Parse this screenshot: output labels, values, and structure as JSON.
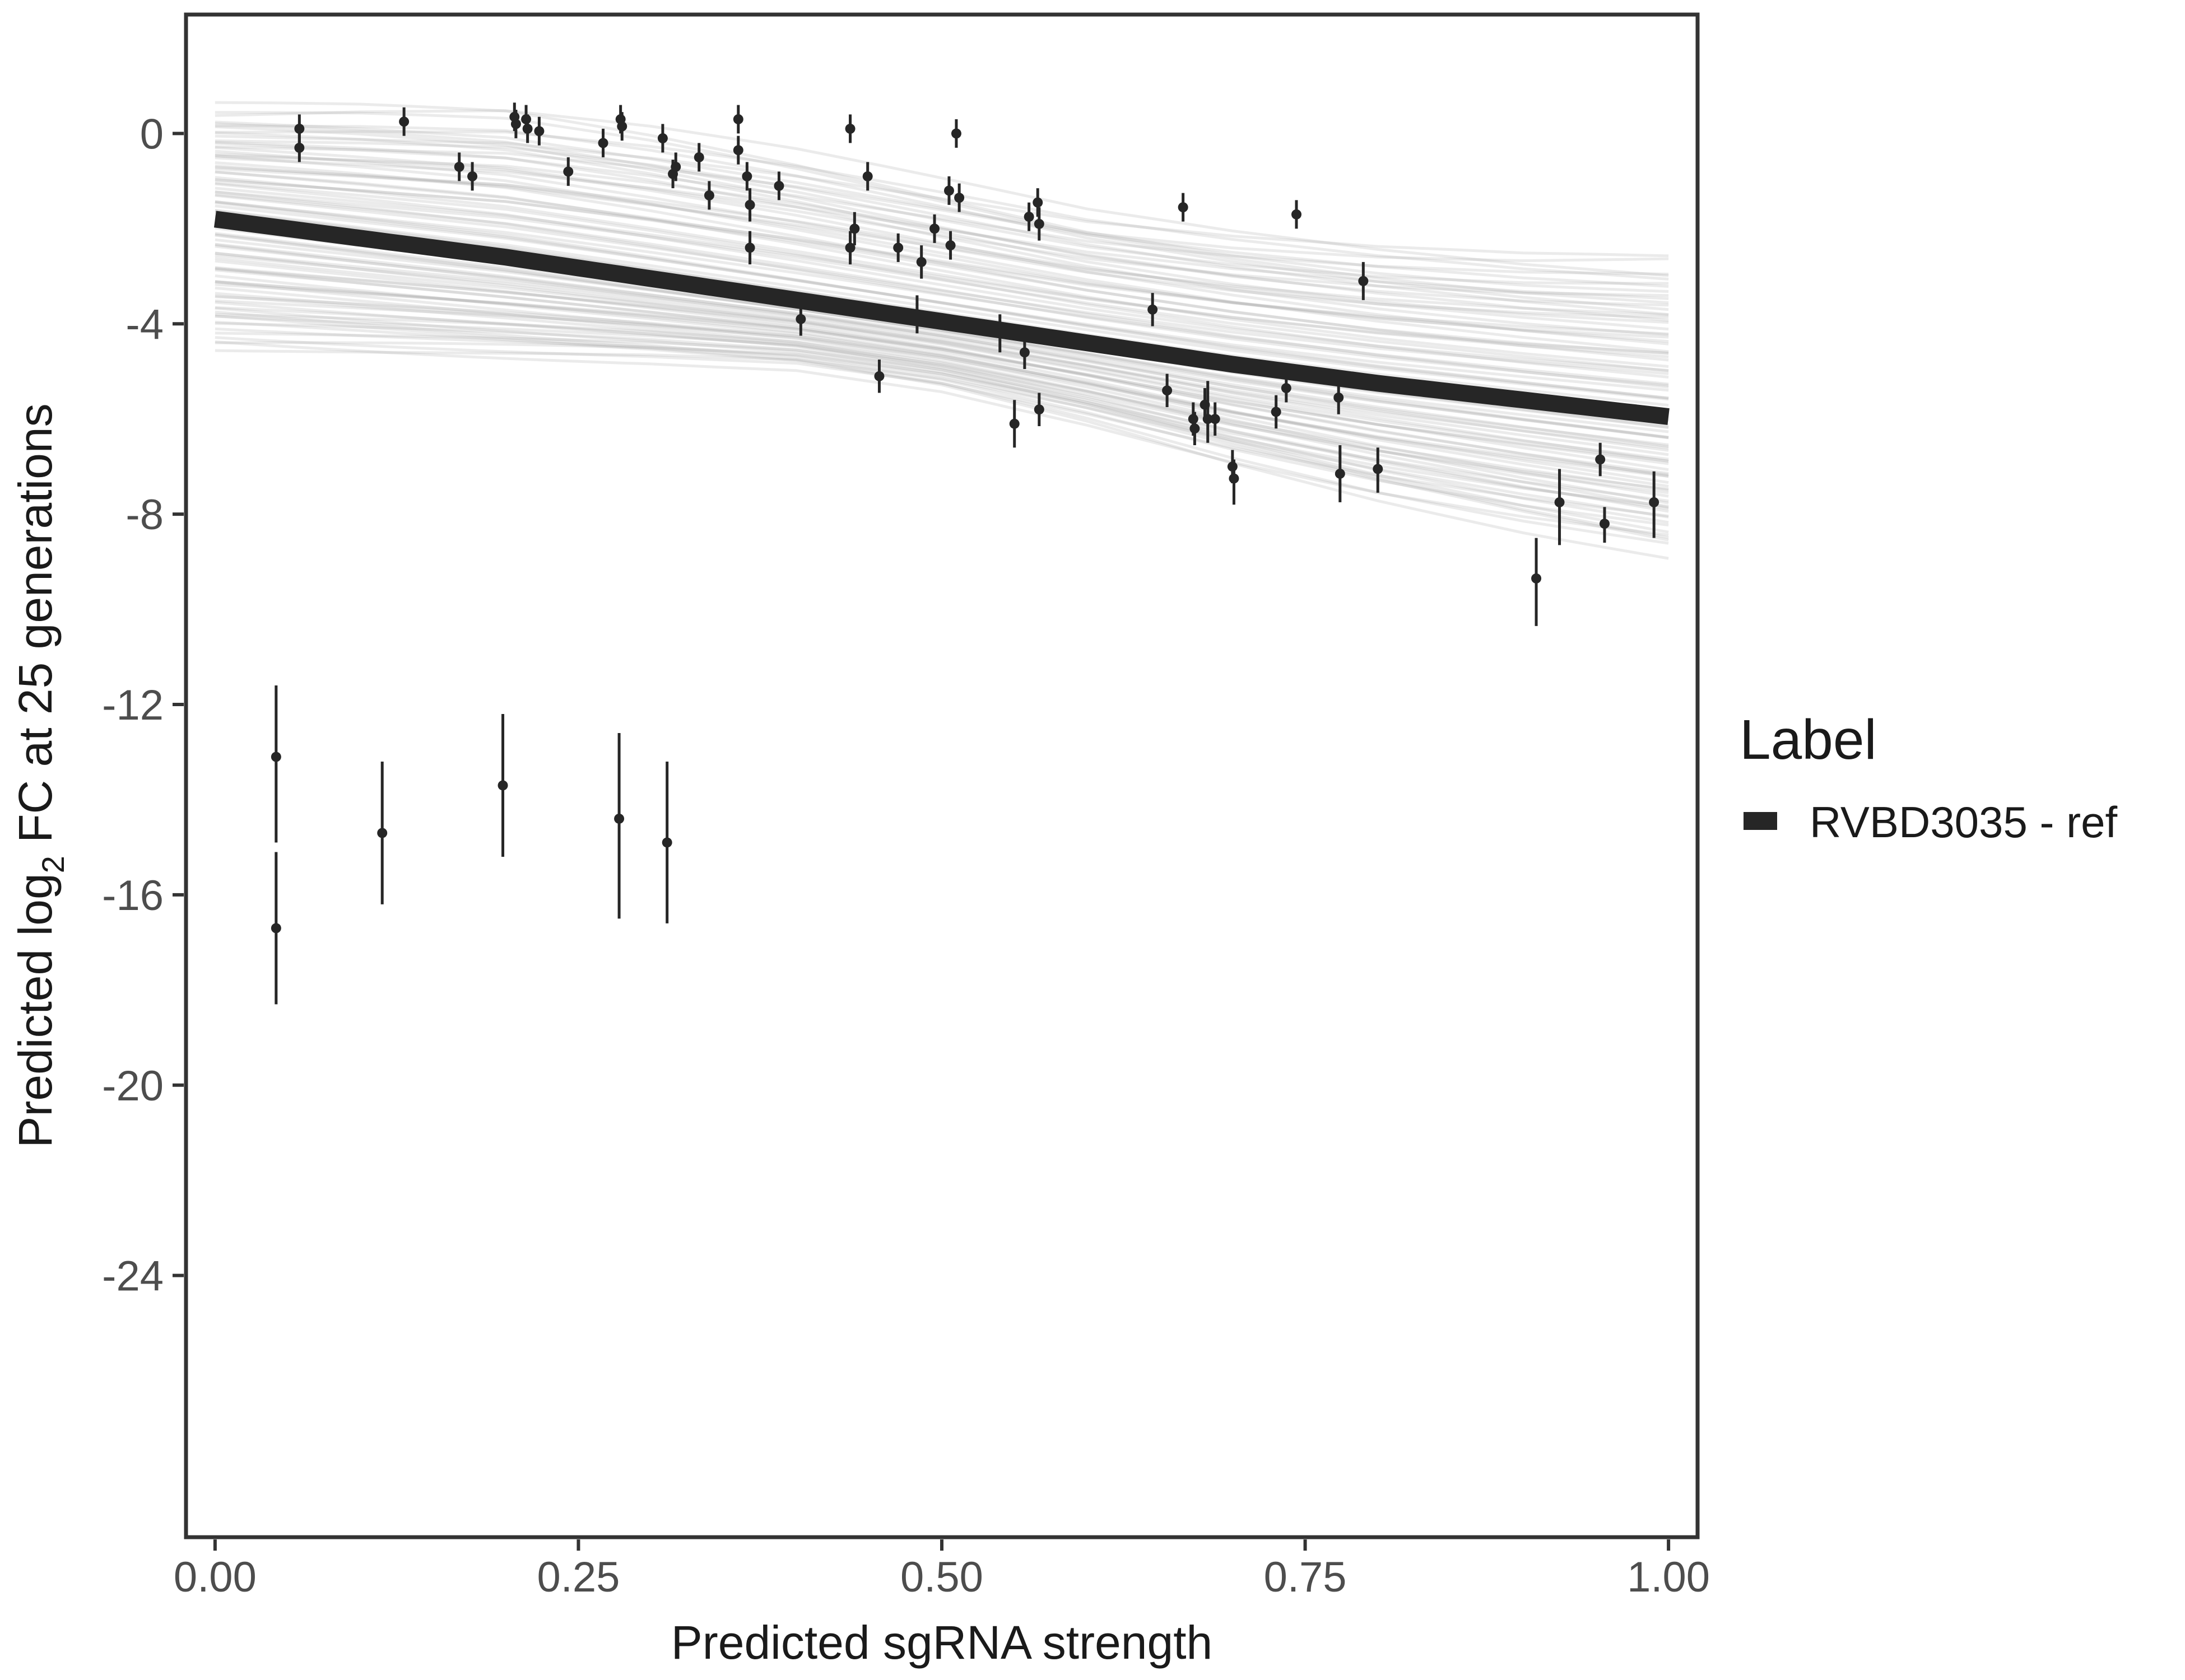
{
  "chart_data": {
    "type": "scatter",
    "title": "",
    "xlabel": "Predicted sgRNA strength",
    "ylabel_prefix": "Predicted  log",
    "ylabel_sub": "2",
    "ylabel_suffix": " FC at 25 generations",
    "xlim": [
      -0.02,
      1.02
    ],
    "ylim": [
      -29.5,
      2.5
    ],
    "x_ticks": [
      0,
      0.25,
      0.5,
      0.75,
      1
    ],
    "x_tick_labels": [
      "0.00",
      "0.25",
      "0.50",
      "0.75",
      "1.00"
    ],
    "y_ticks": [
      0,
      -4,
      -8,
      -12,
      -16,
      -20,
      -24
    ],
    "y_tick_labels": [
      "0",
      "-4",
      "-8",
      "-12",
      "-16",
      "-20",
      "-24"
    ],
    "legend": {
      "title": "Label",
      "entries": [
        {
          "label": "RVBD3035 - ref",
          "color": "#262626"
        }
      ]
    },
    "fit_line": {
      "name": "RVBD3035 - ref",
      "color": "#262626",
      "x": [
        0,
        0.1,
        0.2,
        0.3,
        0.4,
        0.5,
        0.6,
        0.7,
        0.8,
        0.9,
        1.0
      ],
      "y": [
        -1.8,
        -2.2,
        -2.6,
        -3.05,
        -3.5,
        -3.95,
        -4.4,
        -4.85,
        -5.25,
        -5.6,
        -5.95
      ]
    },
    "posterior_band": {
      "color": "#a6a6a6",
      "upper": [
        0.4,
        0.38,
        0.3,
        -0.1,
        -0.6,
        -1.2,
        -1.8,
        -2.2,
        -2.5,
        -2.7,
        -2.8
      ],
      "lower": [
        -4.4,
        -4.5,
        -4.6,
        -4.7,
        -4.85,
        -5.3,
        -6.0,
        -6.8,
        -7.5,
        -8.1,
        -8.6
      ]
    },
    "points": [
      {
        "x": 0.042,
        "y": -13.1,
        "lo": -14.9,
        "hi": -11.6
      },
      {
        "x": 0.042,
        "y": -16.7,
        "lo": -18.3,
        "hi": -15.1
      },
      {
        "x": 0.058,
        "y": 0.1,
        "lo": -0.2,
        "hi": 0.4
      },
      {
        "x": 0.058,
        "y": -0.3,
        "lo": -0.6,
        "hi": 0.0
      },
      {
        "x": 0.115,
        "y": -14.7,
        "lo": -16.2,
        "hi": -13.2
      },
      {
        "x": 0.13,
        "y": 0.25,
        "lo": -0.05,
        "hi": 0.55
      },
      {
        "x": 0.168,
        "y": -0.7,
        "lo": -1.0,
        "hi": -0.4
      },
      {
        "x": 0.177,
        "y": -0.9,
        "lo": -1.2,
        "hi": -0.6
      },
      {
        "x": 0.198,
        "y": -13.7,
        "lo": -15.2,
        "hi": -12.2
      },
      {
        "x": 0.206,
        "y": 0.35,
        "lo": 0.05,
        "hi": 0.65
      },
      {
        "x": 0.207,
        "y": 0.2,
        "lo": -0.1,
        "hi": 0.5
      },
      {
        "x": 0.214,
        "y": 0.3,
        "lo": 0.0,
        "hi": 0.6
      },
      {
        "x": 0.215,
        "y": 0.1,
        "lo": -0.2,
        "hi": 0.4
      },
      {
        "x": 0.223,
        "y": 0.05,
        "lo": -0.25,
        "hi": 0.35
      },
      {
        "x": 0.243,
        "y": -0.8,
        "lo": -1.1,
        "hi": -0.5
      },
      {
        "x": 0.267,
        "y": -0.2,
        "lo": -0.5,
        "hi": 0.1
      },
      {
        "x": 0.279,
        "y": 0.3,
        "lo": 0.0,
        "hi": 0.6
      },
      {
        "x": 0.28,
        "y": 0.15,
        "lo": -0.15,
        "hi": 0.45
      },
      {
        "x": 0.278,
        "y": -14.4,
        "lo": -16.5,
        "hi": -12.6
      },
      {
        "x": 0.308,
        "y": -0.1,
        "lo": -0.4,
        "hi": 0.2
      },
      {
        "x": 0.311,
        "y": -14.9,
        "lo": -16.6,
        "hi": -13.2
      },
      {
        "x": 0.315,
        "y": -0.85,
        "lo": -1.15,
        "hi": -0.55
      },
      {
        "x": 0.317,
        "y": -0.7,
        "lo": -1.0,
        "hi": -0.4
      },
      {
        "x": 0.333,
        "y": -0.5,
        "lo": -0.8,
        "hi": -0.2
      },
      {
        "x": 0.34,
        "y": -1.3,
        "lo": -1.6,
        "hi": -1.0
      },
      {
        "x": 0.36,
        "y": 0.3,
        "lo": 0.0,
        "hi": 0.6
      },
      {
        "x": 0.36,
        "y": -0.35,
        "lo": -0.65,
        "hi": -0.05
      },
      {
        "x": 0.366,
        "y": -0.9,
        "lo": -1.2,
        "hi": -0.6
      },
      {
        "x": 0.368,
        "y": -1.5,
        "lo": -1.85,
        "hi": -1.15
      },
      {
        "x": 0.368,
        "y": -2.4,
        "lo": -2.75,
        "hi": -2.05
      },
      {
        "x": 0.388,
        "y": -1.1,
        "lo": -1.4,
        "hi": -0.8
      },
      {
        "x": 0.403,
        "y": -3.9,
        "lo": -4.25,
        "hi": -3.55
      },
      {
        "x": 0.437,
        "y": 0.1,
        "lo": -0.2,
        "hi": 0.4
      },
      {
        "x": 0.437,
        "y": -2.4,
        "lo": -2.75,
        "hi": -2.05
      },
      {
        "x": 0.44,
        "y": -2.0,
        "lo": -2.35,
        "hi": -1.65
      },
      {
        "x": 0.449,
        "y": -0.9,
        "lo": -1.2,
        "hi": -0.6
      },
      {
        "x": 0.457,
        "y": -5.1,
        "lo": -5.45,
        "hi": -4.75
      },
      {
        "x": 0.47,
        "y": -2.4,
        "lo": -2.7,
        "hi": -2.1
      },
      {
        "x": 0.483,
        "y": -3.8,
        "lo": -4.2,
        "hi": -3.4
      },
      {
        "x": 0.486,
        "y": -2.7,
        "lo": -3.05,
        "hi": -2.35
      },
      {
        "x": 0.495,
        "y": -2.0,
        "lo": -2.3,
        "hi": -1.7
      },
      {
        "x": 0.505,
        "y": -1.2,
        "lo": -1.5,
        "hi": -0.9
      },
      {
        "x": 0.506,
        "y": -2.35,
        "lo": -2.65,
        "hi": -2.05
      },
      {
        "x": 0.51,
        "y": 0.0,
        "lo": -0.3,
        "hi": 0.3
      },
      {
        "x": 0.512,
        "y": -1.35,
        "lo": -1.65,
        "hi": -1.05
      },
      {
        "x": 0.54,
        "y": -4.2,
        "lo": -4.6,
        "hi": -3.8
      },
      {
        "x": 0.55,
        "y": -6.1,
        "lo": -6.6,
        "hi": -5.6
      },
      {
        "x": 0.557,
        "y": -4.6,
        "lo": -4.95,
        "hi": -4.25
      },
      {
        "x": 0.56,
        "y": -1.75,
        "lo": -2.05,
        "hi": -1.45
      },
      {
        "x": 0.566,
        "y": -1.45,
        "lo": -1.75,
        "hi": -1.15
      },
      {
        "x": 0.567,
        "y": -1.9,
        "lo": -2.25,
        "hi": -1.55
      },
      {
        "x": 0.567,
        "y": -5.8,
        "lo": -6.15,
        "hi": -5.45
      },
      {
        "x": 0.645,
        "y": -3.7,
        "lo": -4.05,
        "hi": -3.35
      },
      {
        "x": 0.655,
        "y": -5.4,
        "lo": -5.75,
        "hi": -5.05
      },
      {
        "x": 0.666,
        "y": -1.55,
        "lo": -1.85,
        "hi": -1.25
      },
      {
        "x": 0.673,
        "y": -6.0,
        "lo": -6.35,
        "hi": -5.65
      },
      {
        "x": 0.674,
        "y": -6.2,
        "lo": -6.55,
        "hi": -5.85
      },
      {
        "x": 0.681,
        "y": -5.7,
        "lo": -6.05,
        "hi": -5.35
      },
      {
        "x": 0.683,
        "y": -6.0,
        "lo": -6.5,
        "hi": -5.2
      },
      {
        "x": 0.688,
        "y": -6.0,
        "lo": -6.35,
        "hi": -5.65
      },
      {
        "x": 0.7,
        "y": -7.0,
        "lo": -7.35,
        "hi": -6.65
      },
      {
        "x": 0.701,
        "y": -7.25,
        "lo": -7.8,
        "hi": -6.85
      },
      {
        "x": 0.73,
        "y": -5.85,
        "lo": -6.2,
        "hi": -5.5
      },
      {
        "x": 0.737,
        "y": -5.35,
        "lo": -5.65,
        "hi": -5.05
      },
      {
        "x": 0.744,
        "y": -1.7,
        "lo": -2.0,
        "hi": -1.4
      },
      {
        "x": 0.773,
        "y": -5.55,
        "lo": -5.9,
        "hi": -5.2
      },
      {
        "x": 0.774,
        "y": -7.15,
        "lo": -7.75,
        "hi": -6.55
      },
      {
        "x": 0.79,
        "y": -3.1,
        "lo": -3.5,
        "hi": -2.7
      },
      {
        "x": 0.8,
        "y": -7.05,
        "lo": -7.55,
        "hi": -6.6
      },
      {
        "x": 0.909,
        "y": -9.35,
        "lo": -10.35,
        "hi": -8.5
      },
      {
        "x": 0.925,
        "y": -7.75,
        "lo": -8.65,
        "hi": -7.05
      },
      {
        "x": 0.953,
        "y": -6.85,
        "lo": -7.2,
        "hi": -6.5
      },
      {
        "x": 0.956,
        "y": -8.2,
        "lo": -8.6,
        "hi": -7.85
      },
      {
        "x": 0.99,
        "y": -7.75,
        "lo": -8.5,
        "hi": -7.1
      }
    ]
  }
}
